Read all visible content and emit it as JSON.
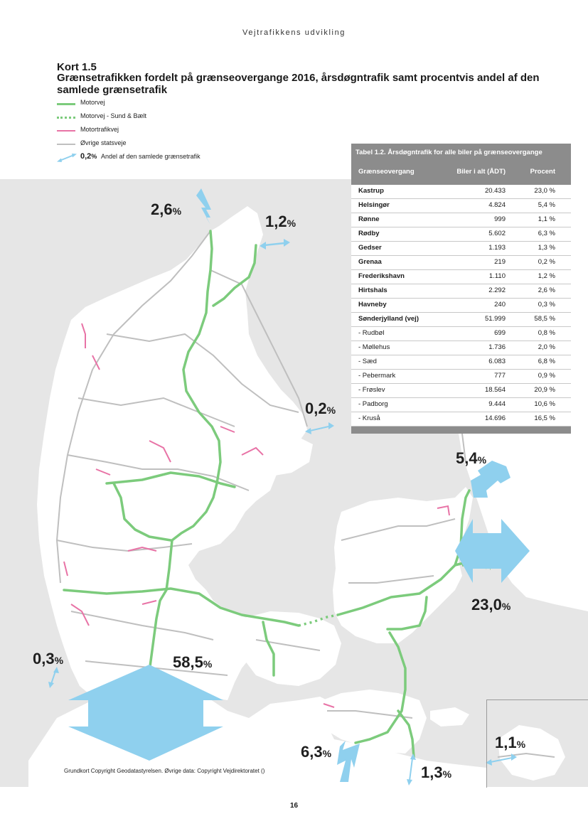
{
  "header": {
    "running_title": "Vejtrafikkens udvikling"
  },
  "figure": {
    "label": "Kort 1.5",
    "title": "Grænsetrafikken fordelt på grænseovergange 2016, årsdøgntrafik samt procentvis andel af den samlede grænsetrafik"
  },
  "legend": {
    "motorvej": "Motorvej",
    "sund_baelt": "Motorvej - Sund & Bælt",
    "motortrafikvej": "Motortrafikvej",
    "ovrige": "Øvrige statsveje",
    "arrow_value": "0,2",
    "arrow_pct_sign": "%",
    "arrow_text": "Andel af den samlede grænsetrafik"
  },
  "colors": {
    "motorvej": "#7ccb7c",
    "motortrafikvej": "#e873a6",
    "ovrige": "#bfbfbf",
    "arrow": "#8fd0ee",
    "land": "#ffffff",
    "sea": "#e6e6e6",
    "table_header": "#8c8c8c"
  },
  "map_labels": [
    {
      "id": "hirtshals",
      "value": "2,6",
      "sign": "%"
    },
    {
      "id": "frederikshavn",
      "value": "1,2",
      "sign": "%"
    },
    {
      "id": "grenaa",
      "value": "0,2",
      "sign": "%"
    },
    {
      "id": "helsingor",
      "value": "5,4",
      "sign": "%"
    },
    {
      "id": "kastrup",
      "value": "23,0",
      "sign": "%"
    },
    {
      "id": "havneby",
      "value": "0,3",
      "sign": "%"
    },
    {
      "id": "sonderjylland",
      "value": "58,5",
      "sign": "%"
    },
    {
      "id": "rodby",
      "value": "6,3",
      "sign": "%"
    },
    {
      "id": "gedser",
      "value": "1,3",
      "sign": "%"
    },
    {
      "id": "ronne",
      "value": "1,1",
      "sign": "%"
    }
  ],
  "table": {
    "title": "Tabel 1.2. Årsdøgntrafik for alle biler på grænseovergange",
    "columns": [
      "Grænseovergang",
      "Biler i alt (ÅDT)",
      "Procent"
    ],
    "rows": [
      {
        "name": "Kastrup",
        "total": "20.433",
        "pct": "23,0 %",
        "bold": true
      },
      {
        "name": "Helsingør",
        "total": "4.824",
        "pct": "5,4 %",
        "bold": true
      },
      {
        "name": "Rønne",
        "total": "999",
        "pct": "1,1 %",
        "bold": true
      },
      {
        "name": "Rødby",
        "total": "5.602",
        "pct": "6,3 %",
        "bold": true
      },
      {
        "name": "Gedser",
        "total": "1.193",
        "pct": "1,3 %",
        "bold": true
      },
      {
        "name": "Grenaa",
        "total": "219",
        "pct": "0,2 %",
        "bold": true
      },
      {
        "name": "Frederikshavn",
        "total": "1.110",
        "pct": "1,2 %",
        "bold": true
      },
      {
        "name": "Hirtshals",
        "total": "2.292",
        "pct": "2,6 %",
        "bold": true
      },
      {
        "name": "Havneby",
        "total": "240",
        "pct": "0,3 %",
        "bold": true
      },
      {
        "name": "Sønderjylland (vej)",
        "total": "51.999",
        "pct": "58,5 %",
        "bold": true
      },
      {
        "name": "- Rudbøl",
        "total": "699",
        "pct": "0,8 %",
        "bold": false
      },
      {
        "name": "- Møllehus",
        "total": "1.736",
        "pct": "2,0 %",
        "bold": false
      },
      {
        "name": "- Sæd",
        "total": "6.083",
        "pct": "6,8 %",
        "bold": false
      },
      {
        "name": "- Pebermark",
        "total": "777",
        "pct": "0,9 %",
        "bold": false
      },
      {
        "name": "- Frøslev",
        "total": "18.564",
        "pct": "20,9 %",
        "bold": false
      },
      {
        "name": "- Padborg",
        "total": "9.444",
        "pct": "10,6 %",
        "bold": false
      },
      {
        "name": "- Kruså",
        "total": "14.696",
        "pct": "16,5 %",
        "bold": false
      }
    ]
  },
  "footer": {
    "copyright": "Grundkort Copyright Geodatastyrelsen. Øvrige data: Copyright Vejdirektoratet ()",
    "page_number": "16"
  }
}
